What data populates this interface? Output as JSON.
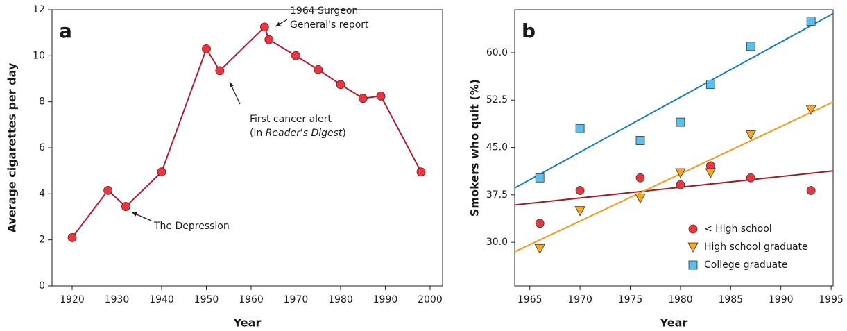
{
  "chart_data": [
    {
      "type": "line",
      "panel_label": "a",
      "x_label": "Year",
      "y_label": "Average cigarettes per day",
      "x": [
        1920,
        1928,
        1932,
        1940,
        1950,
        1953,
        1963,
        1964,
        1970,
        1975,
        1980,
        1985,
        1989,
        1998
      ],
      "values": [
        2.1,
        4.15,
        3.45,
        4.95,
        10.3,
        9.35,
        11.25,
        10.7,
        10.0,
        9.4,
        8.75,
        8.15,
        8.25,
        4.95
      ],
      "color": "#b01c2e",
      "marker_color": "#e8373f",
      "xlim": [
        1915.5,
        2002.8
      ],
      "xticks": [
        1920,
        1930,
        1940,
        1950,
        1960,
        1970,
        1980,
        1990,
        2000
      ],
      "ylim": [
        0,
        12
      ],
      "yticks": [
        0,
        2,
        4,
        6,
        8,
        10,
        12
      ],
      "annotations": [
        {
          "lines": [
            [
              "1964 Surgeon"
            ],
            [
              "General's report"
            ]
          ]
        },
        {
          "lines": [
            [
              "First cancer alert"
            ],
            [
              "(in ",
              "Reader's Digest",
              ")"
            ]
          ]
        },
        {
          "lines": [
            [
              "The Depression"
            ]
          ]
        }
      ]
    },
    {
      "type": "scatter",
      "panel_label": "b",
      "x_label": "Year",
      "y_label": "Smokers who quit (%)",
      "x": [
        1966,
        1970,
        1976,
        1980,
        1983,
        1987,
        1993
      ],
      "series": [
        {
          "name": "< High school",
          "color": "#e8373f",
          "line_color": "#a01c24",
          "marker": "circle",
          "values": [
            33.0,
            38.2,
            40.2,
            39.1,
            42.1,
            40.2,
            38.2
          ],
          "fit_values": [
            35.9,
            41.3
          ]
        },
        {
          "name": "High school graduate",
          "color": "#f5a623",
          "line_color": "#f39a1e",
          "marker": "triangle",
          "values": [
            29.0,
            35.0,
            37.0,
            41.0,
            41.0,
            47.0,
            51.0
          ],
          "fit_values": [
            28.5,
            52.2
          ]
        },
        {
          "name": "College graduate",
          "color": "#5bc0ee",
          "line_color": "#1a7cc0",
          "marker": "square",
          "values": [
            40.2,
            48.0,
            46.1,
            49.0,
            55.0,
            61.0,
            65.0
          ],
          "fit_values": [
            38.6,
            66.2
          ]
        }
      ],
      "xlim": [
        1963.5,
        1995.2
      ],
      "xticks": [
        1965,
        1970,
        1975,
        1980,
        1985,
        1990,
        1995
      ],
      "ylim": [
        23.1,
        66.8
      ],
      "yticks": [
        {
          "value": 30,
          "label": "30.0"
        },
        {
          "value": 37.5,
          "label": "37.5"
        },
        {
          "value": 45,
          "label": "45.0"
        },
        {
          "value": 52.5,
          "label": "52.5"
        },
        {
          "value": 60,
          "label": "60.0"
        }
      ],
      "legend": "lower right"
    }
  ]
}
